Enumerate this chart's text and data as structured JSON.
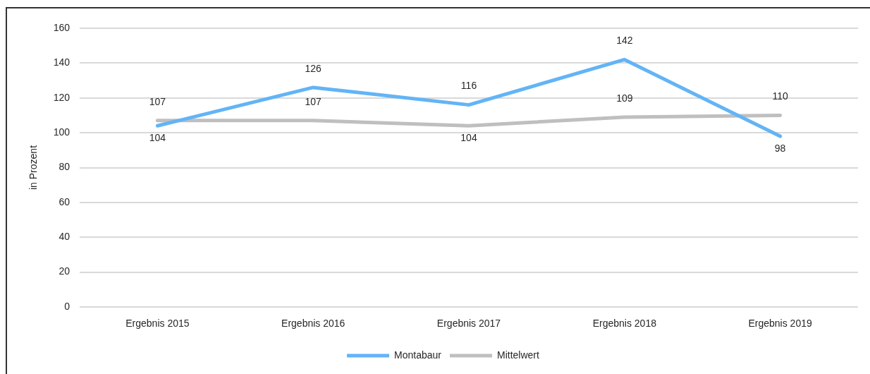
{
  "chart_data": {
    "type": "line",
    "ylabel": "in Prozent",
    "categories": [
      "Ergebnis 2015",
      "Ergebnis 2016",
      "Ergebnis 2017",
      "Ergebnis 2018",
      "Ergebnis 2019"
    ],
    "series": [
      {
        "name": "Montabaur",
        "color": "#62b4f6",
        "values": [
          104,
          126,
          116,
          142,
          98
        ]
      },
      {
        "name": "Mittelwert",
        "color": "#bfbfbf",
        "values": [
          107,
          107,
          104,
          109,
          110
        ]
      }
    ],
    "ylim": [
      0,
      160
    ],
    "yticks": [
      0,
      20,
      40,
      60,
      80,
      100,
      120,
      140,
      160
    ],
    "grid": "y",
    "legend": "bottom",
    "data_labels": true
  }
}
